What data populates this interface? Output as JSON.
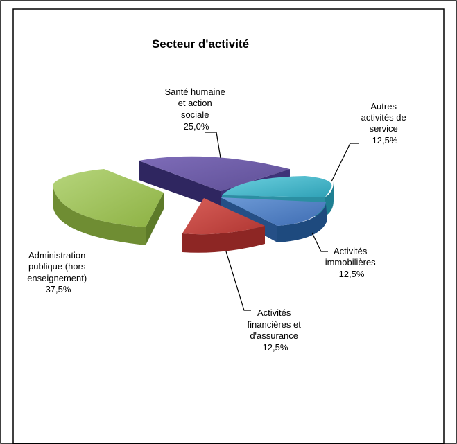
{
  "chart_data": {
    "type": "pie",
    "title": "Secteur d'activité",
    "exploded": true,
    "three_d": true,
    "slices": [
      {
        "label_lines": [
          "Santé humaine",
          "et action",
          "sociale"
        ],
        "pct_label": "25,0%",
        "value": 25.0,
        "color": "#6a5aa3"
      },
      {
        "label_lines": [
          "Autres",
          "activités de",
          "service"
        ],
        "pct_label": "12,5%",
        "value": 12.5,
        "color": "#3fb4c9"
      },
      {
        "label_lines": [
          "Activités",
          "immobilières"
        ],
        "pct_label": "12,5%",
        "value": 12.5,
        "color": "#4f7fc4"
      },
      {
        "label_lines": [
          "Activités",
          "financières et",
          "d'assurance"
        ],
        "pct_label": "12,5%",
        "value": 12.5,
        "color": "#c0433f"
      },
      {
        "label_lines": [
          "Administration",
          "publique (hors",
          "enseignement)"
        ],
        "pct_label": "37,5%",
        "value": 37.5,
        "color": "#98bd4b"
      }
    ]
  }
}
